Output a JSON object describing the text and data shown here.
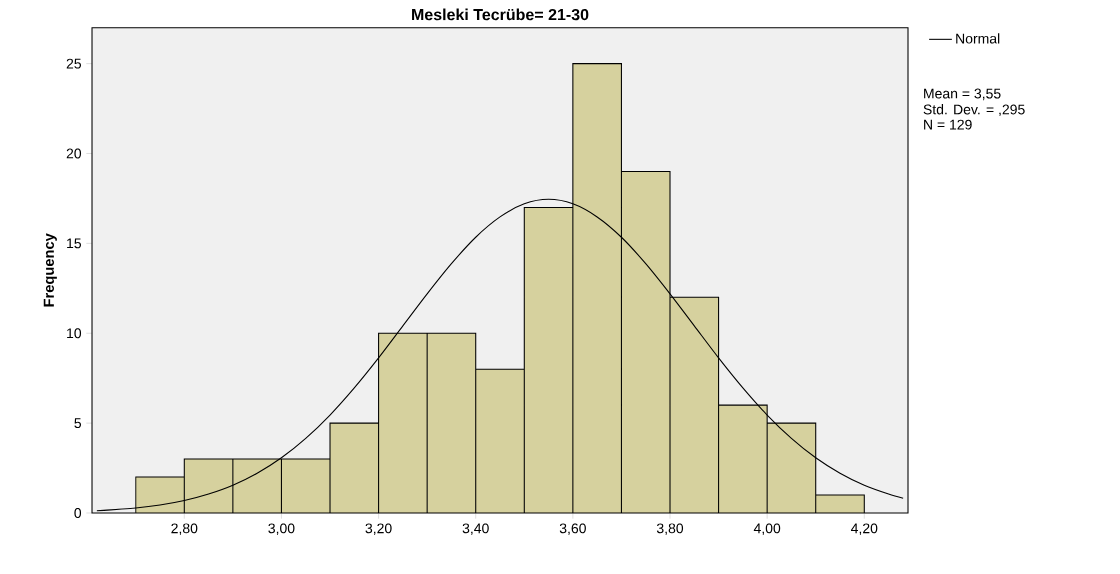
{
  "chart_data": {
    "type": "histogram",
    "title": "Mesleki Tecrübe= 21-30",
    "ylabel": "Frequency",
    "bins": [
      2.7,
      2.8,
      2.9,
      3.0,
      3.1,
      3.2,
      3.3,
      3.4,
      3.5,
      3.6,
      3.7,
      3.8,
      3.9,
      4.0,
      4.1,
      4.2
    ],
    "series": [
      {
        "color": "#d6d19e",
        "values": [
          2,
          3,
          3,
          3,
          5,
          10,
          10,
          8,
          17,
          25,
          19,
          12,
          6,
          5,
          1
        ]
      },
      {
        "type": "line",
        "name": "Normal",
        "color": "#000000",
        "x": [
          2.62,
          2.7,
          2.75,
          2.8,
          2.85,
          2.9,
          2.95,
          3.0,
          3.05,
          3.1,
          3.15,
          3.2,
          3.25,
          3.3,
          3.35,
          3.4,
          3.45,
          3.5,
          3.55,
          3.6,
          3.65,
          3.7,
          3.75,
          3.8,
          3.85,
          3.9,
          3.95,
          4.0,
          4.05,
          4.1,
          4.15,
          4.2,
          4.25,
          4.28
        ],
        "values": [
          0.12,
          0.28,
          0.44,
          0.69,
          1.05,
          1.54,
          2.21,
          3.07,
          4.15,
          5.45,
          6.96,
          8.63,
          10.41,
          12.19,
          13.87,
          15.34,
          16.47,
          17.2,
          17.45,
          17.2,
          16.47,
          15.34,
          13.87,
          12.19,
          10.41,
          8.63,
          6.96,
          5.45,
          4.15,
          3.07,
          2.21,
          1.54,
          1.05,
          0.82
        ]
      }
    ],
    "xlim": [
      2.61,
      4.29
    ],
    "ylim": [
      0,
      27
    ],
    "xticks": [
      {
        "value": 2.8,
        "label": "2,80"
      },
      {
        "value": 3.0,
        "label": "3,00"
      },
      {
        "value": 3.2,
        "label": "3,20"
      },
      {
        "value": 3.4,
        "label": "3,40"
      },
      {
        "value": 3.6,
        "label": "3,60"
      },
      {
        "value": 3.8,
        "label": "3,80"
      },
      {
        "value": 4.0,
        "label": "4,00"
      },
      {
        "value": 4.2,
        "label": "4,20"
      }
    ],
    "yticks": [
      0,
      5,
      10,
      15,
      20,
      25
    ],
    "legend": "top right",
    "grid": false,
    "annotations": [
      "Mean = 3,55",
      "Std. Dev. = ,295",
      "N = 129"
    ]
  }
}
